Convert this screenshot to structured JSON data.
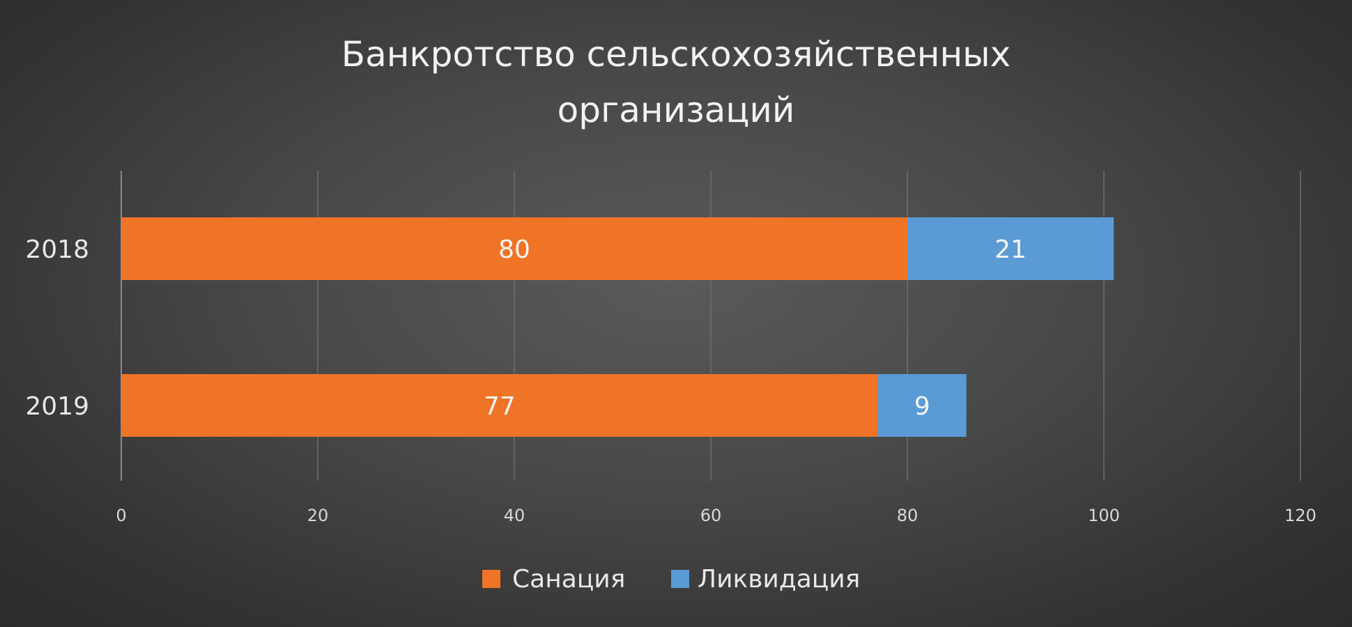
{
  "chart_data": {
    "type": "bar",
    "orientation": "horizontal",
    "stacked": true,
    "title_lines": [
      "Банкротство сельскохозяйственных",
      "организаций"
    ],
    "categories": [
      "2018",
      "2019"
    ],
    "series": [
      {
        "name": "Санация",
        "values": [
          80,
          77
        ],
        "color": "#f07426"
      },
      {
        "name": "Ликвидация",
        "values": [
          21,
          9
        ],
        "color": "#5b9bd5"
      }
    ],
    "xlim": [
      0,
      120
    ],
    "xticks": [
      0,
      20,
      40,
      60,
      80,
      100,
      120
    ],
    "xlabel": "",
    "ylabel": "",
    "grid": true,
    "legend_position": "bottom",
    "data_labels": true
  }
}
